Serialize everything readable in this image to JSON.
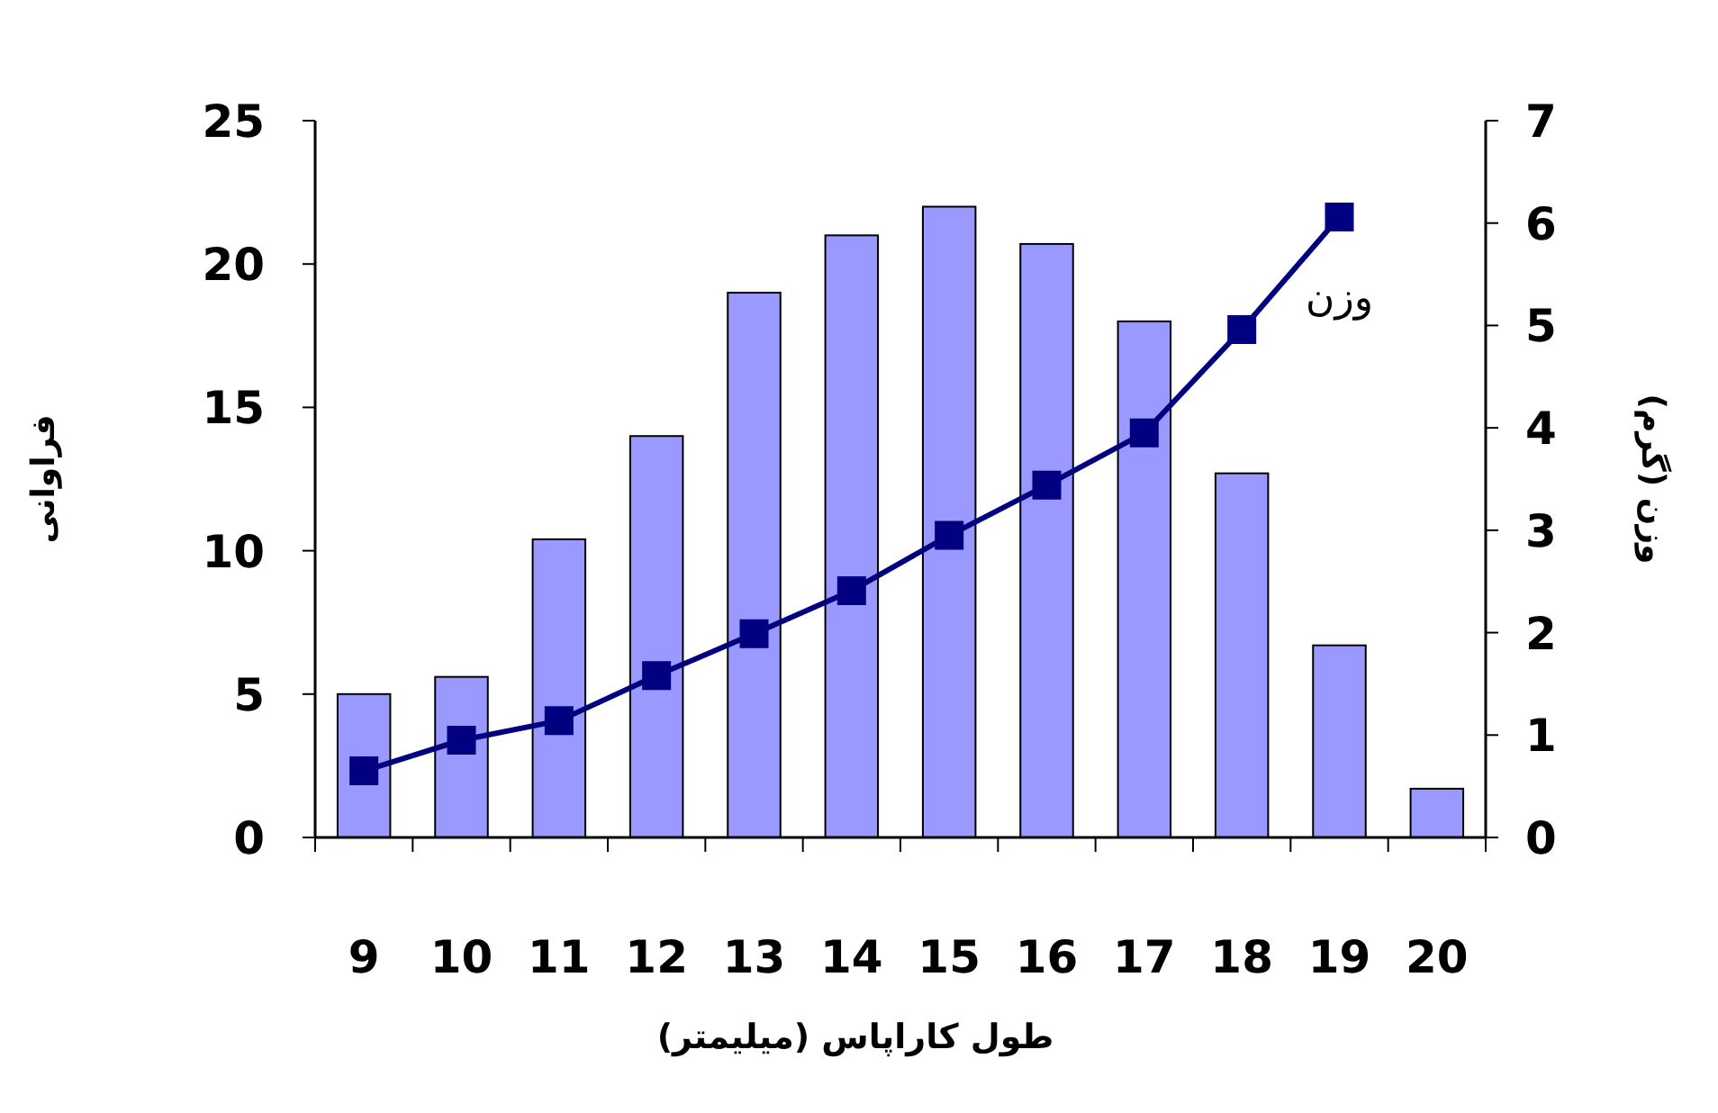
{
  "chart_data": {
    "type": "bar",
    "categories": [
      "9",
      "10",
      "11",
      "12",
      "13",
      "14",
      "15",
      "16",
      "17",
      "18",
      "19",
      "20"
    ],
    "series": [
      {
        "color": "#9999ff",
        "values": [
          5.0,
          5.6,
          10.4,
          14.0,
          19.0,
          21.0,
          22.0,
          20.7,
          18.0,
          12.7,
          6.7,
          1.7
        ]
      },
      {
        "type": "line",
        "axis": "y2",
        "name": "وزن",
        "color": "#000080",
        "marker": "square",
        "values": [
          0.65,
          0.95,
          1.14,
          1.58,
          1.99,
          2.41,
          2.95,
          3.44,
          3.95,
          4.96,
          6.06,
          null
        ]
      }
    ],
    "ylim": [
      0,
      25
    ],
    "yticks": [
      0,
      5,
      10,
      15,
      20,
      25
    ],
    "y2lim": [
      0,
      7
    ],
    "y2ticks": [
      0,
      1,
      2,
      3,
      4,
      5,
      6,
      7
    ],
    "xlabel": "طول کاراپاس (میلیمتر)",
    "ylabel": "فراوانی",
    "y2label": "وزن (گرم)"
  }
}
